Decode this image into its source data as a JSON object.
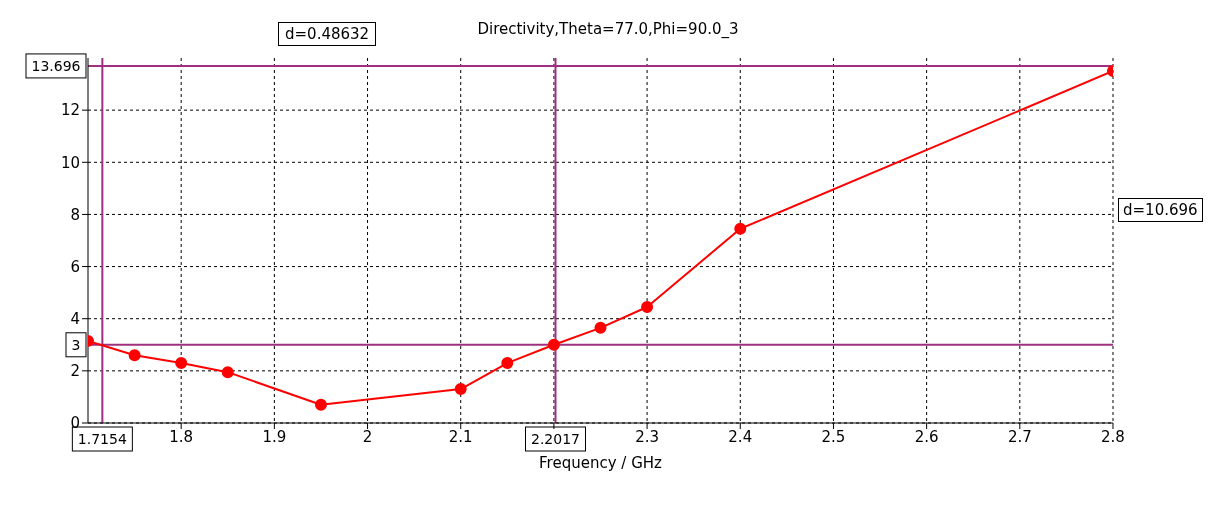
{
  "chart_data": {
    "type": "line",
    "title": "Directivity,Theta=77.0,Phi=90.0_3",
    "xlabel": "Frequency / GHz",
    "x": [
      1.7,
      1.75,
      1.8,
      1.85,
      1.95,
      2.1,
      2.15,
      2.2,
      2.25,
      2.3,
      2.4,
      2.8
    ],
    "series": [
      {
        "color": "#ff0000",
        "values": [
          3.15,
          2.6,
          2.3,
          1.95,
          0.7,
          1.3,
          2.3,
          3.0,
          3.65,
          4.45,
          7.45,
          13.5
        ]
      }
    ],
    "xlim": [
      1.7,
      2.8
    ],
    "xticks": [
      1.8,
      1.9,
      2,
      2.1,
      {
        "value": 2.2,
        "label": null
      },
      2.3,
      2.4,
      2.5,
      2.6,
      2.7,
      2.8
    ],
    "ylim": [
      0,
      14
    ],
    "yticks": [
      0,
      2,
      4,
      6,
      8,
      10,
      12
    ],
    "grid": true,
    "marker": "circle",
    "line_style": "solid",
    "ref_lines": [
      {
        "axis": "x",
        "value": 1.7154,
        "label": "1.7154",
        "color": "#a0307f"
      },
      {
        "axis": "x",
        "value": 2.2017,
        "label": "2.2017",
        "color": "#a0307f"
      },
      {
        "axis": "y",
        "value": 13.696,
        "label": "13.696",
        "color": "#a0307f"
      },
      {
        "axis": "y",
        "value": 3,
        "label": "3",
        "color": "#a0307f"
      }
    ],
    "annotations": [
      "d=0.48632",
      "d=10.696"
    ]
  }
}
